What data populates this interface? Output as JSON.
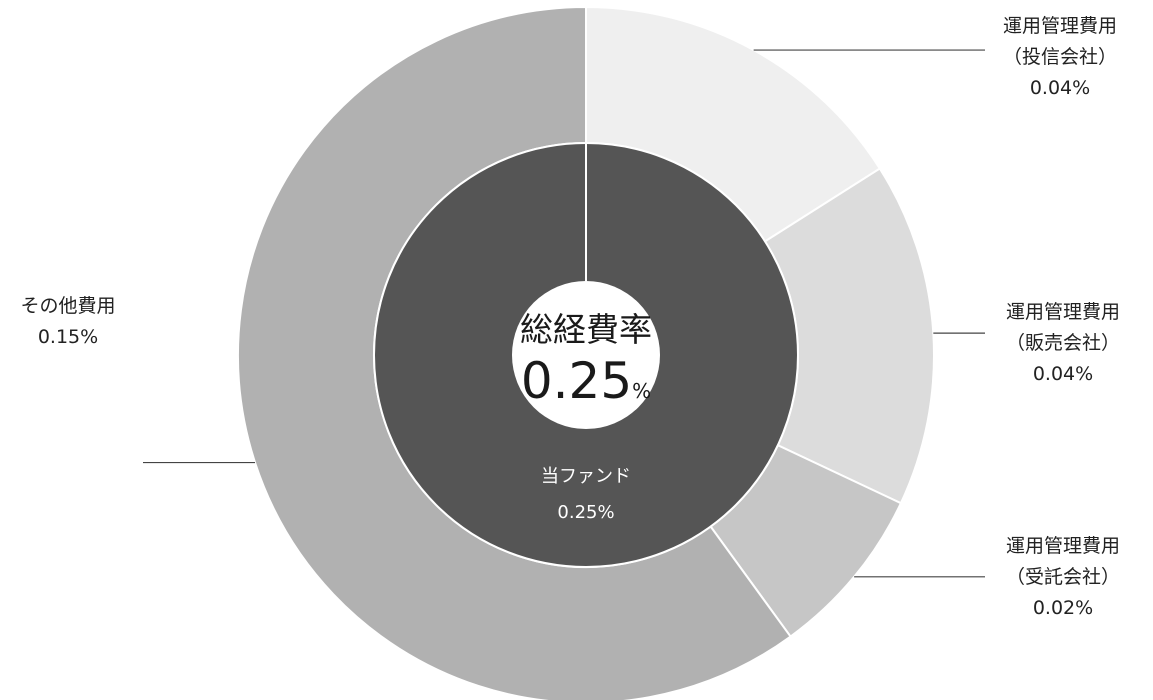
{
  "chart_data": {
    "type": "pie",
    "variant": "nested-donut",
    "unit": "%",
    "outer": {
      "slices": [
        {
          "lines": [
            "運用管理費用",
            "（投信会社）"
          ],
          "value_label": "0.04%",
          "value": 0.04,
          "color": "#efefef"
        },
        {
          "lines": [
            "運用管理費用",
            "（販売会社）"
          ],
          "value_label": "0.04%",
          "value": 0.04,
          "color": "#dcdcdc"
        },
        {
          "lines": [
            "運用管理費用",
            "（受託会社）"
          ],
          "value_label": "0.02%",
          "value": 0.02,
          "color": "#c6c6c6"
        },
        {
          "lines": [
            "その他費用"
          ],
          "value_label": "0.15%",
          "value": 0.15,
          "color": "#b1b1b1"
        }
      ]
    },
    "inner": {
      "lines": [
        "当ファンド"
      ],
      "value_label": "0.25%",
      "value": 0.25,
      "color": "#555555"
    },
    "center": {
      "title": "総経費率",
      "value": "0.25",
      "unit": "%",
      "color": "#ffffff"
    }
  }
}
